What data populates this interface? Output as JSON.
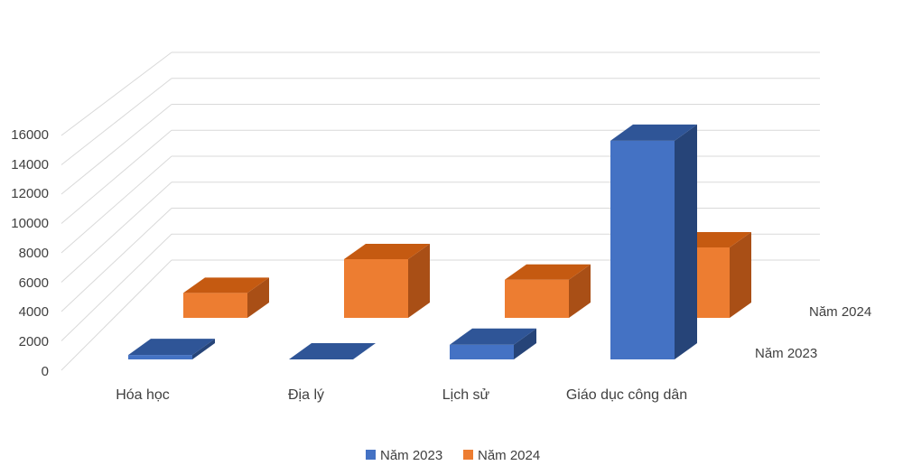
{
  "chart_data": {
    "type": "bar",
    "categories": [
      "Hóa học",
      "Địa lý",
      "Lịch sử",
      "Giáo dục công dân"
    ],
    "series": [
      {
        "name": "Năm 2023",
        "values": [
          300,
          0,
          1000,
          14900
        ]
      },
      {
        "name": "Năm 2024",
        "values": [
          1700,
          4000,
          2600,
          4800
        ]
      }
    ],
    "y_ticks": [
      "0",
      "2000",
      "4000",
      "6000",
      "8000",
      "10000",
      "12000",
      "14000",
      "16000"
    ],
    "depth_labels": [
      "Năm 2023",
      "Năm 2024"
    ],
    "legend": [
      "Năm 2023",
      "Năm 2024"
    ],
    "ylim": [
      0,
      16000
    ],
    "grid": true,
    "legend_position": "bottom",
    "title": "",
    "xlabel": "",
    "ylabel": "",
    "colors": {
      "series_2023": "#4472c4",
      "series_2024": "#ed7d31",
      "gridline": "#d9d9d9",
      "text": "#404040"
    }
  }
}
